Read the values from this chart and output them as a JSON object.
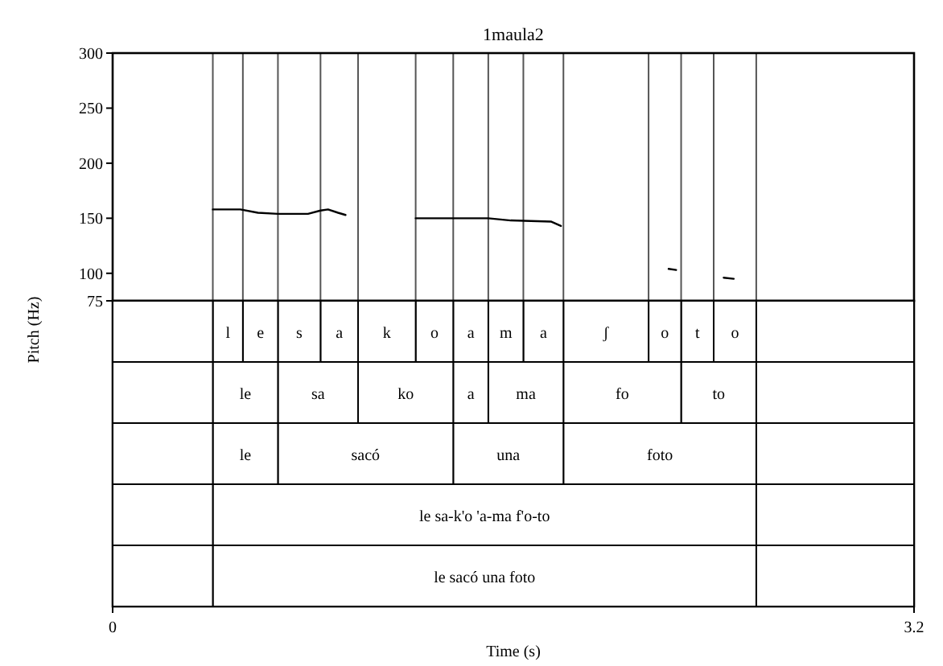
{
  "chart_data": [
    {
      "type": "line",
      "title": "1maula2",
      "ylabel": "Pitch (Hz)",
      "xlim": [
        0,
        3.2
      ],
      "ylim": [
        75,
        300
      ],
      "yticks": [
        75,
        100,
        150,
        200,
        250,
        300
      ],
      "tick_labels": "y",
      "grid": false,
      "marker": "none",
      "line_style": "solid",
      "series": [
        {
          "color": "#000000",
          "x": [
            0.4,
            0.51,
            0.58,
            0.66,
            0.78,
            0.83,
            0.86,
            0.9,
            0.93,
            1.0,
            1.21,
            1.36,
            1.5,
            1.59,
            1.75,
            1.79,
            2.0,
            2.22,
            2.25,
            2.35,
            2.44,
            2.48
          ],
          "values": [
            158,
            158,
            155,
            154,
            154,
            157,
            158,
            155,
            153,
            null,
            150,
            150,
            150,
            148,
            147,
            143,
            null,
            104,
            103,
            null,
            96,
            95
          ]
        }
      ],
      "ref_lines": [
        {
          "axis": "x",
          "value": 0.4,
          "color": "#555555"
        },
        {
          "axis": "x",
          "value": 0.52,
          "color": "#555555"
        },
        {
          "axis": "x",
          "value": 0.66,
          "color": "#555555"
        },
        {
          "axis": "x",
          "value": 0.83,
          "color": "#555555"
        },
        {
          "axis": "x",
          "value": 0.98,
          "color": "#555555"
        },
        {
          "axis": "x",
          "value": 1.21,
          "color": "#555555"
        },
        {
          "axis": "x",
          "value": 1.36,
          "color": "#555555"
        },
        {
          "axis": "x",
          "value": 1.5,
          "color": "#555555"
        },
        {
          "axis": "x",
          "value": 1.64,
          "color": "#555555"
        },
        {
          "axis": "x",
          "value": 1.8,
          "color": "#555555"
        },
        {
          "axis": "x",
          "value": 2.14,
          "color": "#555555"
        },
        {
          "axis": "x",
          "value": 2.27,
          "color": "#555555"
        },
        {
          "axis": "x",
          "value": 2.4,
          "color": "#555555"
        },
        {
          "axis": "x",
          "value": 2.57,
          "color": "#555555"
        }
      ]
    },
    {
      "type": "bar",
      "orientation": "horizontal",
      "stacked": true,
      "xlabel": "Time (s)",
      "xlim": [
        0,
        3.2
      ],
      "xticks": [
        0,
        3.2
      ],
      "tick_labels": "x",
      "categories": [
        null,
        null,
        null,
        null,
        null
      ],
      "series": [
        {
          "color": "#ffffff",
          "values": [
            0.4,
            0.4,
            0.4,
            0.4,
            0.4
          ],
          "value_labels": [
            null,
            null,
            null,
            null,
            null
          ]
        },
        {
          "color": "#ffffff",
          "values": [
            0.12,
            0.26,
            0.26,
            2.17,
            2.17
          ],
          "value_labels": [
            "l",
            "le",
            "le",
            "le sa-k'o 'a-ma f'o-to",
            "le sacó una foto"
          ]
        },
        {
          "color": "#ffffff",
          "values": [
            0.14,
            0.32,
            0.7,
            0.63,
            0.63
          ],
          "value_labels": [
            "e",
            "sa",
            "sacó",
            null,
            null
          ]
        },
        {
          "color": "#ffffff",
          "values": [
            0.17,
            0.38,
            0.44,
            null,
            null
          ],
          "value_labels": [
            "s",
            "ko",
            "una",
            null,
            null
          ]
        },
        {
          "color": "#ffffff",
          "values": [
            0.15,
            0.14,
            0.77,
            null,
            null
          ],
          "value_labels": [
            "a",
            "a",
            "foto",
            null,
            null
          ]
        },
        {
          "color": "#ffffff",
          "values": [
            0.23,
            0.3,
            0.63,
            null,
            null
          ],
          "value_labels": [
            "k",
            "ma",
            null,
            null,
            null
          ]
        },
        {
          "color": "#ffffff",
          "values": [
            0.15,
            0.47,
            null,
            null,
            null
          ],
          "value_labels": [
            "o",
            "fo",
            null,
            null,
            null
          ]
        },
        {
          "color": "#ffffff",
          "values": [
            0.14,
            0.3,
            null,
            null,
            null
          ],
          "value_labels": [
            "a",
            "to",
            null,
            null,
            null
          ]
        },
        {
          "color": "#ffffff",
          "values": [
            0.14,
            0.63,
            null,
            null,
            null
          ],
          "value_labels": [
            "m",
            null,
            null,
            null,
            null
          ]
        },
        {
          "color": "#ffffff",
          "values": [
            0.16,
            null,
            null,
            null,
            null
          ],
          "value_labels": [
            "a",
            null,
            null,
            null,
            null
          ]
        },
        {
          "color": "#ffffff",
          "values": [
            0.34,
            null,
            null,
            null,
            null
          ],
          "value_labels": [
            "ʃ",
            null,
            null,
            null,
            null
          ]
        },
        {
          "color": "#ffffff",
          "values": [
            0.13,
            null,
            null,
            null,
            null
          ],
          "value_labels": [
            "o",
            null,
            null,
            null,
            null
          ]
        },
        {
          "color": "#ffffff",
          "values": [
            0.13,
            null,
            null,
            null,
            null
          ],
          "value_labels": [
            "t",
            null,
            null,
            null,
            null
          ]
        },
        {
          "color": "#ffffff",
          "values": [
            0.17,
            null,
            null,
            null,
            null
          ],
          "value_labels": [
            "o",
            null,
            null,
            null,
            null
          ]
        },
        {
          "color": "#ffffff",
          "values": [
            0.63,
            null,
            null,
            null,
            null
          ],
          "value_labels": [
            null,
            null,
            null,
            null,
            null
          ]
        }
      ]
    }
  ]
}
